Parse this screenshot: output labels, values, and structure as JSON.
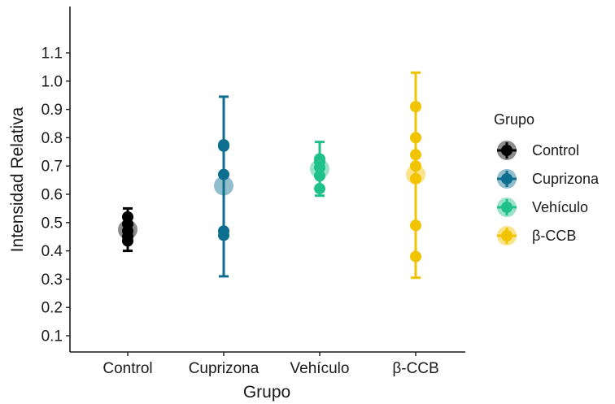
{
  "chart_data": {
    "type": "scatter",
    "title": "",
    "xlabel": "Grupo",
    "ylabel": "Intensidad Relativa",
    "categories": [
      "Control",
      "Cuprizona",
      "Vehículo",
      "β-CCB"
    ],
    "ylim": [
      0.05,
      1.15
    ],
    "yticks": [
      0.1,
      0.2,
      0.3,
      0.4,
      0.5,
      0.6,
      0.7,
      0.8,
      0.9,
      1.0,
      1.1
    ],
    "ytick_labels": [
      "0.1",
      "0.2",
      "0.3",
      "0.4",
      "0.5",
      "0.6",
      "0.7",
      "0.8",
      "0.9",
      "1.0",
      "1.1"
    ],
    "grid": false,
    "legend": {
      "title": "Grupo",
      "position": "right"
    },
    "series": [
      {
        "name": "Control",
        "color": "#000000",
        "mean": 0.475,
        "error": [
          0.4,
          0.55
        ],
        "points": [
          0.52,
          0.495,
          0.47,
          0.45,
          0.435
        ]
      },
      {
        "name": "Cuprizona",
        "color": "#0e6e8f",
        "mean": 0.63,
        "error": [
          0.31,
          0.945
        ],
        "points": [
          0.775,
          0.77,
          0.67,
          0.47,
          0.455
        ]
      },
      {
        "name": "Vehículo",
        "color": "#1fc08a",
        "mean": 0.69,
        "error": [
          0.595,
          0.785
        ],
        "points": [
          0.725,
          0.715,
          0.695,
          0.665,
          0.62
        ]
      },
      {
        "name": "β-CCB",
        "color": "#f2c300",
        "mean": 0.67,
        "error": [
          0.305,
          1.03
        ],
        "points": [
          0.91,
          0.8,
          0.74,
          0.7,
          0.655,
          0.49,
          0.38
        ]
      }
    ]
  }
}
